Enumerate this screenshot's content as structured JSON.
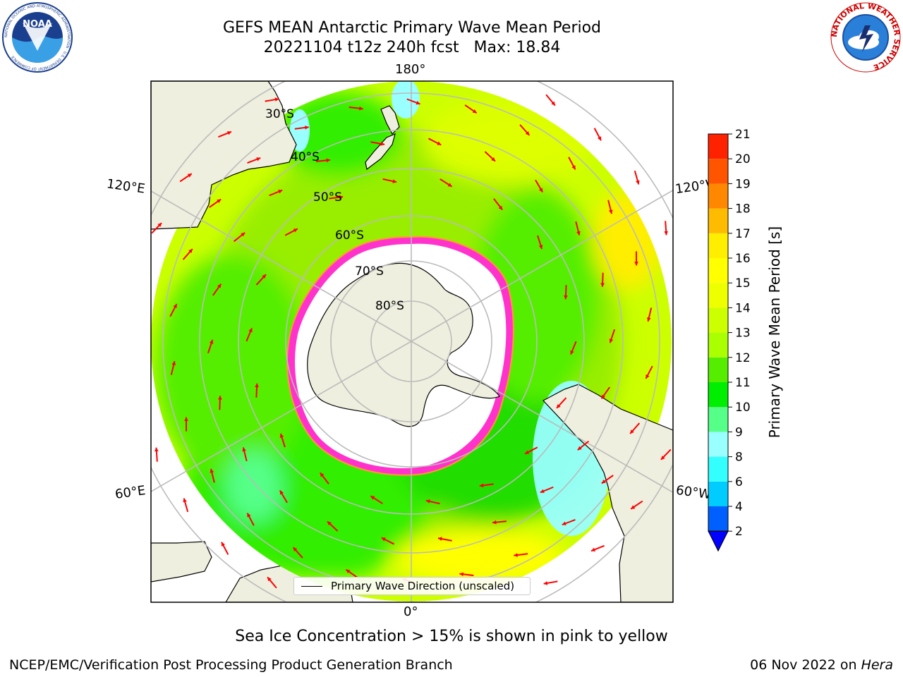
{
  "header": {
    "title_line1": "GEFS MEAN Antarctic Primary Wave Mean Period",
    "title_line2": "20221104 t12z 240h fcst   Max: 18.84"
  },
  "logos": {
    "noaa_text": "NOAA",
    "noaa_ring": "NATIONAL OCEANIC AND ATMOSPHERIC ADMINISTRATION · U.S. DEPARTMENT OF COMMERCE",
    "nws_ring": "NATIONAL WEATHER SERVICE"
  },
  "map": {
    "lon_labels": [
      "180°",
      "120°E",
      "120°W",
      "60°E",
      "60°W",
      "0°"
    ],
    "lat_labels": [
      "30°S",
      "40°S",
      "50°S",
      "60°S",
      "70°S",
      "80°S"
    ],
    "legend_label": "Primary Wave Direction (unscaled)",
    "colors": {
      "land": "#efefdf",
      "ice": "#ffffff",
      "ice_edge": "#ff33cc",
      "arrow": "#ff0000",
      "grid": "#bbbbbb"
    }
  },
  "colorbar": {
    "label": "Primary Wave Mean Period [s]",
    "ticks": [
      "2",
      "4",
      "6",
      "8",
      "9",
      "10",
      "11",
      "12",
      "13",
      "14",
      "15",
      "16",
      "17",
      "18",
      "19",
      "20",
      "21"
    ],
    "colors": [
      "#0060ff",
      "#00ccff",
      "#33ffff",
      "#99ffff",
      "#55ff88",
      "#00ee00",
      "#55ee00",
      "#aaff00",
      "#ccff00",
      "#eeff00",
      "#ffff00",
      "#ffee00",
      "#ffbb00",
      "#ff8800",
      "#ff5500",
      "#ff2200",
      "#ff0000"
    ],
    "extend_color": "#0000ff"
  },
  "notes": {
    "sea_ice": "Sea Ice Concentration > 15% is shown in pink to yellow"
  },
  "footer": {
    "left": "NCEP/EMC/Verification Post Processing Product Generation Branch",
    "date": "06 Nov 2022 on",
    "machine": "Hera"
  }
}
